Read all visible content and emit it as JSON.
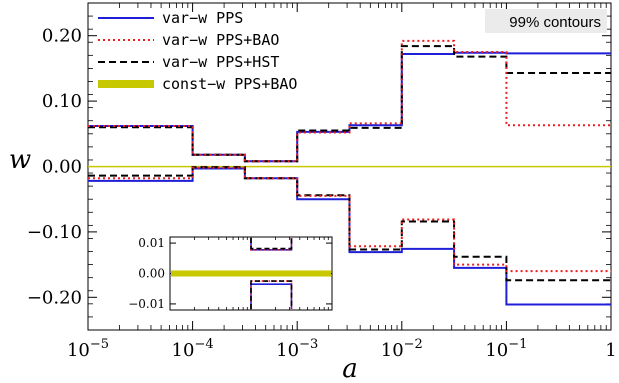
{
  "chart_data": {
    "type": "line",
    "xlabel": "a",
    "ylabel": "w",
    "x_scale": "log",
    "xlim": [
      1e-05,
      1
    ],
    "ylim": [
      -0.25,
      0.25
    ],
    "x_tick_labels": [
      "10^-5",
      "10^-4",
      "10^-3",
      "10^-2",
      "10^-1",
      "1"
    ],
    "x_ticks": [
      {
        "base": "10",
        "exp": "−5"
      },
      {
        "base": "10",
        "exp": "−4"
      },
      {
        "base": "10",
        "exp": "−3"
      },
      {
        "base": "10",
        "exp": "−2"
      },
      {
        "base": "10",
        "exp": "−1"
      },
      {
        "base": "1",
        "exp": ""
      }
    ],
    "y_ticks": [
      0.2,
      0.1,
      0.0,
      -0.1,
      -0.2
    ],
    "y_tick_labels": [
      "0.20",
      "0.10",
      "0.00",
      "−0.10",
      "−0.20"
    ],
    "annotation": "99% contours",
    "bin_edges": [
      1e-05,
      0.0001,
      0.000316,
      0.001,
      0.00316,
      0.01,
      0.0316,
      0.1,
      1
    ],
    "series": [
      {
        "name": "var−w   PPS",
        "color": "#1f1fd8",
        "dash": "solid",
        "upper": [
          0.062,
          0.018,
          0.008,
          0.053,
          0.063,
          0.172,
          0.174,
          0.173
        ],
        "lower": [
          -0.022,
          -0.003,
          -0.018,
          -0.05,
          -0.131,
          -0.126,
          -0.155,
          -0.211
        ]
      },
      {
        "name": "var−w   PPS+BAO",
        "color": "#ee1c1c",
        "dash": "dotted",
        "upper": [
          0.062,
          0.018,
          0.008,
          0.052,
          0.066,
          0.192,
          0.175,
          0.063
        ],
        "lower": [
          -0.018,
          -0.002,
          -0.018,
          -0.045,
          -0.122,
          -0.081,
          -0.15,
          -0.16
        ]
      },
      {
        "name": "var−w   PPS+HST",
        "color": "#000000",
        "dash": "dashed",
        "upper": [
          0.06,
          0.018,
          0.008,
          0.055,
          0.059,
          0.184,
          0.168,
          0.143
        ],
        "lower": [
          -0.014,
          -0.001,
          -0.018,
          -0.044,
          -0.127,
          -0.084,
          -0.138,
          -0.174
        ]
      },
      {
        "name": "const−w PPS+BAO",
        "color": "#c8c800",
        "dash": "band",
        "upper": [
          0.001
        ],
        "lower": [
          -0.001
        ]
      }
    ],
    "inset": {
      "xlim": [
        1e-05,
        0.001
      ],
      "ylim": [
        -0.012,
        0.012
      ],
      "y_ticks": [
        0.01,
        0.0,
        -0.01
      ],
      "y_tick_labels": [
        "0.01",
        "0.00",
        "−0.01"
      ],
      "bins": [
        {
          "from": 0.0001,
          "to": 0.000316,
          "upper": [
            0.0078,
            0.0078,
            0.0082
          ],
          "lower": [
            -0.0035,
            -0.0025,
            -0.0025
          ]
        }
      ],
      "band": [
        -0.001,
        0.001
      ]
    },
    "legend_position": "top-left",
    "grid": false
  }
}
